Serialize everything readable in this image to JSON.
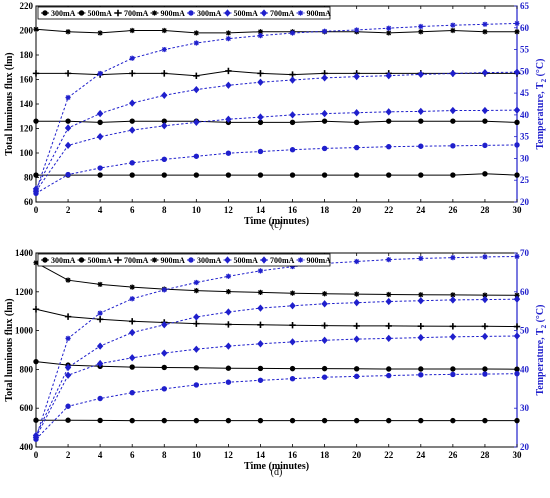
{
  "chart_data": [
    {
      "type": "line",
      "caption": "(c)",
      "xlabel": "Time (minutes)",
      "ylabel": "Total luminous flux (lm)",
      "y2label": "Temperature, T",
      "y2label_sub": "2",
      "y2label_unit": " (°C)",
      "xlim": [
        0,
        30
      ],
      "ylim": [
        60,
        220
      ],
      "y2lim": [
        20,
        65
      ],
      "xticks": [
        0,
        2,
        4,
        6,
        8,
        10,
        12,
        14,
        16,
        18,
        20,
        22,
        24,
        26,
        28,
        30
      ],
      "yticks": [
        60,
        80,
        100,
        120,
        140,
        160,
        180,
        200,
        220
      ],
      "y2ticks": [
        20,
        25,
        30,
        35,
        40,
        45,
        50,
        55,
        60,
        65
      ],
      "legend": [
        "300mA",
        "500mA",
        "700mA",
        "900mA",
        "300mA",
        "500mA",
        "700mA",
        "900mA"
      ],
      "x": [
        0,
        2,
        4,
        6,
        8,
        10,
        12,
        14,
        16,
        18,
        20,
        22,
        24,
        26,
        28,
        30
      ],
      "series": [
        {
          "name": "300mA",
          "axis": "left",
          "color": "#000000",
          "marker": "circle",
          "values": [
            82,
            82,
            82,
            82,
            82,
            82,
            82,
            82,
            82,
            82,
            82,
            82,
            82,
            82,
            83,
            82
          ]
        },
        {
          "name": "500mA",
          "axis": "left",
          "color": "#000000",
          "marker": "circle",
          "values": [
            126,
            126,
            125,
            126,
            126,
            126,
            125,
            125,
            125,
            126,
            125,
            126,
            126,
            126,
            126,
            125
          ]
        },
        {
          "name": "700mA",
          "axis": "left",
          "color": "#000000",
          "marker": "plus",
          "values": [
            165,
            165,
            164,
            165,
            165,
            163,
            167,
            165,
            164,
            165,
            165,
            165,
            165,
            165,
            165,
            165
          ]
        },
        {
          "name": "900mA",
          "axis": "left",
          "color": "#000000",
          "marker": "star",
          "values": [
            201,
            199,
            198,
            200,
            200,
            198,
            198,
            199,
            199,
            199,
            199,
            198,
            199,
            200,
            199,
            199
          ]
        },
        {
          "name": "300mA",
          "axis": "right",
          "color": "#1f1fcc",
          "marker": "circle",
          "values": [
            22,
            26.3,
            27.8,
            29.0,
            29.8,
            30.5,
            31.2,
            31.6,
            32.0,
            32.3,
            32.5,
            32.7,
            32.8,
            32.9,
            33.0,
            33.1
          ]
        },
        {
          "name": "500mA",
          "axis": "right",
          "color": "#1f1fcc",
          "marker": "diamond",
          "values": [
            22.5,
            33.0,
            35.0,
            36.5,
            37.5,
            38.3,
            39.0,
            39.5,
            40.0,
            40.3,
            40.5,
            40.7,
            40.8,
            41.0,
            41.0,
            41.1
          ]
        },
        {
          "name": "700mA",
          "axis": "right",
          "color": "#1f1fcc",
          "marker": "diamond",
          "values": [
            23,
            37.0,
            40.3,
            42.7,
            44.5,
            45.8,
            46.8,
            47.5,
            48.0,
            48.5,
            48.8,
            49.0,
            49.3,
            49.5,
            49.7,
            49.8
          ]
        },
        {
          "name": "900mA",
          "axis": "right",
          "color": "#1f1fcc",
          "marker": "star",
          "values": [
            22.5,
            44.0,
            49.5,
            53.0,
            55.0,
            56.5,
            57.5,
            58.2,
            58.8,
            59.2,
            59.5,
            59.9,
            60.3,
            60.6,
            60.8,
            61.0
          ]
        }
      ]
    },
    {
      "type": "line",
      "caption": "(d)",
      "xlabel": "Time (minutes)",
      "ylabel": "Total luminous flux (lm)",
      "y2label": "Temperature, T",
      "y2label_sub": "2",
      "y2label_unit": " (°C)",
      "xlim": [
        0,
        30
      ],
      "ylim": [
        400,
        1400
      ],
      "y2lim": [
        20,
        70
      ],
      "xticks": [
        0,
        2,
        4,
        6,
        8,
        10,
        12,
        14,
        16,
        18,
        20,
        22,
        24,
        26,
        28,
        30
      ],
      "yticks": [
        400,
        600,
        800,
        1000,
        1200,
        1400
      ],
      "y2ticks": [
        20,
        30,
        40,
        50,
        60,
        70
      ],
      "legend": [
        "300mA",
        "500mA",
        "700mA",
        "900mA",
        "300mA",
        "500mA",
        "700mA",
        "900mA"
      ],
      "x": [
        0,
        2,
        4,
        6,
        8,
        10,
        12,
        14,
        16,
        18,
        20,
        22,
        24,
        26,
        28,
        30
      ],
      "series": [
        {
          "name": "300mA",
          "axis": "left",
          "color": "#000000",
          "marker": "circle",
          "values": [
            538,
            538,
            537,
            536,
            536,
            536,
            536,
            536,
            536,
            536,
            536,
            536,
            536,
            536,
            536,
            536
          ]
        },
        {
          "name": "500mA",
          "axis": "left",
          "color": "#000000",
          "marker": "circle",
          "values": [
            840,
            822,
            816,
            812,
            810,
            808,
            806,
            805,
            804,
            804,
            803,
            802,
            802,
            802,
            802,
            801
          ]
        },
        {
          "name": "700mA",
          "axis": "left",
          "color": "#000000",
          "marker": "plus",
          "values": [
            1110,
            1072,
            1058,
            1048,
            1042,
            1036,
            1032,
            1030,
            1028,
            1026,
            1024,
            1024,
            1023,
            1022,
            1022,
            1021
          ]
        },
        {
          "name": "900mA",
          "axis": "left",
          "color": "#000000",
          "marker": "star",
          "values": [
            1350,
            1260,
            1238,
            1224,
            1214,
            1206,
            1201,
            1197,
            1193,
            1190,
            1188,
            1186,
            1185,
            1184,
            1183,
            1182
          ]
        },
        {
          "name": "300mA",
          "axis": "right",
          "color": "#1f1fcc",
          "marker": "circle",
          "values": [
            22,
            30.5,
            32.5,
            34.0,
            35.0,
            36.0,
            36.7,
            37.2,
            37.6,
            38.0,
            38.2,
            38.4,
            38.6,
            38.7,
            38.8,
            38.9
          ]
        },
        {
          "name": "500mA",
          "axis": "right",
          "color": "#1f1fcc",
          "marker": "diamond",
          "values": [
            22.5,
            38.5,
            41.5,
            43.0,
            44.2,
            45.2,
            46.0,
            46.6,
            47.1,
            47.5,
            47.8,
            48.0,
            48.2,
            48.4,
            48.5,
            48.6
          ]
        },
        {
          "name": "700mA",
          "axis": "right",
          "color": "#1f1fcc",
          "marker": "diamond",
          "values": [
            23,
            40.5,
            46.0,
            49.5,
            51.5,
            53.5,
            54.8,
            55.8,
            56.4,
            56.9,
            57.2,
            57.5,
            57.7,
            57.9,
            58.0,
            58.1
          ]
        },
        {
          "name": "900mA",
          "axis": "right",
          "color": "#1f1fcc",
          "marker": "star",
          "values": [
            22.5,
            48.0,
            54.5,
            58.2,
            60.5,
            62.4,
            64.0,
            65.4,
            66.5,
            67.3,
            67.8,
            68.3,
            68.6,
            68.8,
            69.0,
            69.1
          ]
        }
      ]
    }
  ]
}
